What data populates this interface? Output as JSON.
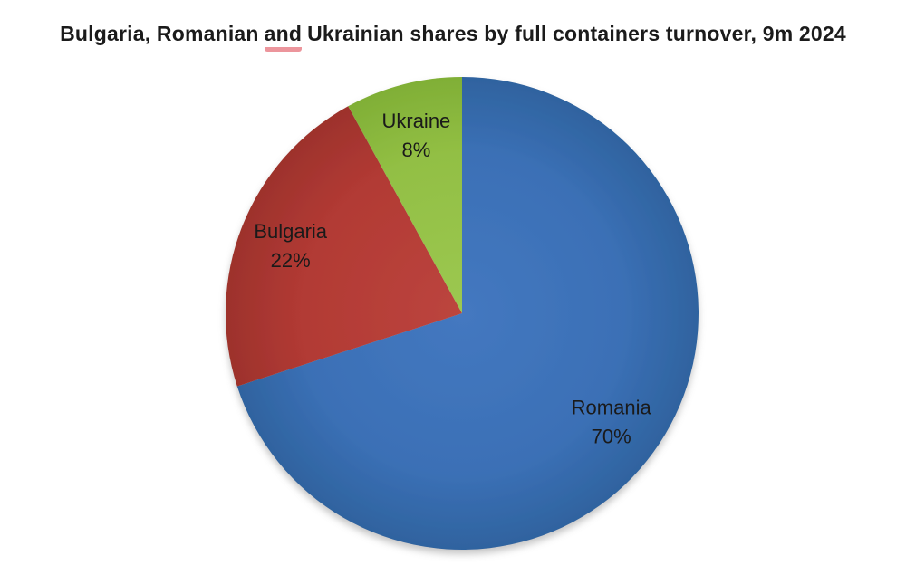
{
  "page": {
    "background_color": "#ffffff"
  },
  "header": {
    "title_prefix": "Bulgaria, Romanian",
    "title_underlined_word": "and",
    "title_suffix": "Ukrainian shares by full containers turnover, 9m 2024",
    "full_title": "Bulgaria, Romanian and Ukrainian shares by full containers turnover, 9m 2024",
    "text_color": "#1b1b1b",
    "underline_color": "#ec959c"
  },
  "chart_data": {
    "type": "pie",
    "title": "Bulgaria, Romanian and Ukrainian shares by full containers turnover, 9m 2024",
    "start_angle_deg": 0,
    "direction": "clockwise",
    "legend_position": "none",
    "labels_position": "inside",
    "label_color": "#1a1a1a",
    "slices": [
      {
        "label": "Romania",
        "value": 70,
        "display_value": "70%",
        "color": "#3b70b6",
        "color_inner": "#4478c0",
        "color_edge": "#2f639f"
      },
      {
        "label": "Bulgaria",
        "value": 22,
        "display_value": "22%",
        "color": "#b23a34",
        "color_inner": "#bc453e",
        "color_edge": "#9d322c"
      },
      {
        "label": "Ukraine",
        "value": 8,
        "display_value": "8%",
        "color": "#92bf44",
        "color_inner": "#9cc851",
        "color_edge": "#80af36"
      }
    ]
  }
}
